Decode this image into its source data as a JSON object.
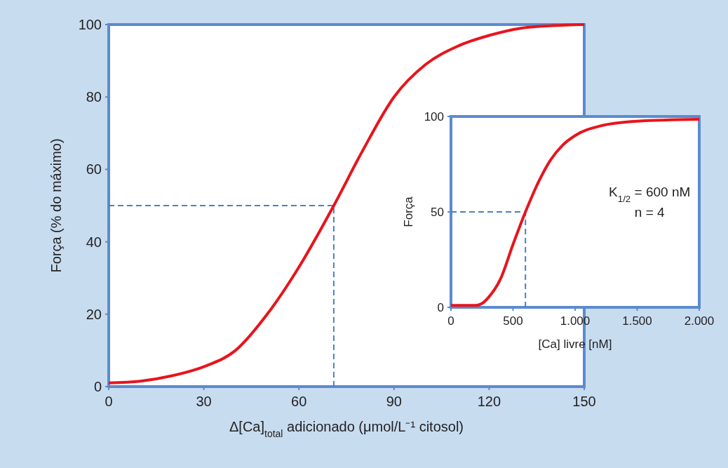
{
  "chart_data": [
    {
      "type": "line",
      "xlabel": "Δ[Ca]$_{total}$ adicionado (μmol/L⁻¹ citosol)",
      "ylabel": "Força (% do máximo)",
      "xlim": [
        0,
        150
      ],
      "ylim": [
        0,
        100
      ],
      "xticks": [
        0,
        30,
        60,
        90,
        120,
        150
      ],
      "yticks": [
        0,
        20,
        40,
        60,
        80,
        100
      ],
      "grid": false,
      "x": [
        0,
        10,
        20,
        30,
        40,
        50,
        60,
        71,
        80,
        90,
        100,
        110,
        120,
        130,
        140,
        150
      ],
      "series": [
        {
          "color": "#e8141c",
          "values": [
            1,
            1.5,
            3,
            5.5,
            10,
            20,
            33,
            50,
            65,
            80,
            89,
            94,
            97,
            99,
            99.7,
            100
          ]
        }
      ],
      "ref_lines": [
        {
          "axis": "y",
          "value": 50,
          "color": "#4a7fc4",
          "line_style": "dashed"
        },
        {
          "axis": "x",
          "value": 71,
          "color": "#4a7fc4",
          "line_style": "dashed"
        }
      ]
    },
    {
      "type": "line",
      "xlabel": "[Ca] livre [nM]",
      "ylabel": "Força",
      "xlim": [
        0,
        2000
      ],
      "ylim": [
        0,
        100
      ],
      "xticks": [
        0,
        500,
        {
          "value": 1000,
          "label": "1.000"
        },
        {
          "value": 1500,
          "label": "1.500"
        },
        {
          "value": 2000,
          "label": "2.000"
        }
      ],
      "yticks": [
        0,
        50,
        100
      ],
      "grid": false,
      "x": [
        0,
        200,
        250,
        300,
        400,
        500,
        600,
        700,
        800,
        900,
        1000,
        1200,
        1500,
        2000
      ],
      "series": [
        {
          "color": "#e8141c",
          "values": [
            1,
            1,
            2,
            5,
            15,
            33,
            50,
            65,
            77,
            85,
            90,
            95,
            97.5,
            98.5
          ]
        }
      ],
      "ref_lines": [
        {
          "axis": "y",
          "value": 50,
          "color": "#4a7fc4",
          "line_style": "dashed"
        },
        {
          "axis": "x",
          "value": 600,
          "color": "#4a7fc4",
          "line_style": "dashed"
        }
      ],
      "annotations": [
        "K$_{1/2}$ = 600 nM",
        "n = 4"
      ]
    }
  ]
}
